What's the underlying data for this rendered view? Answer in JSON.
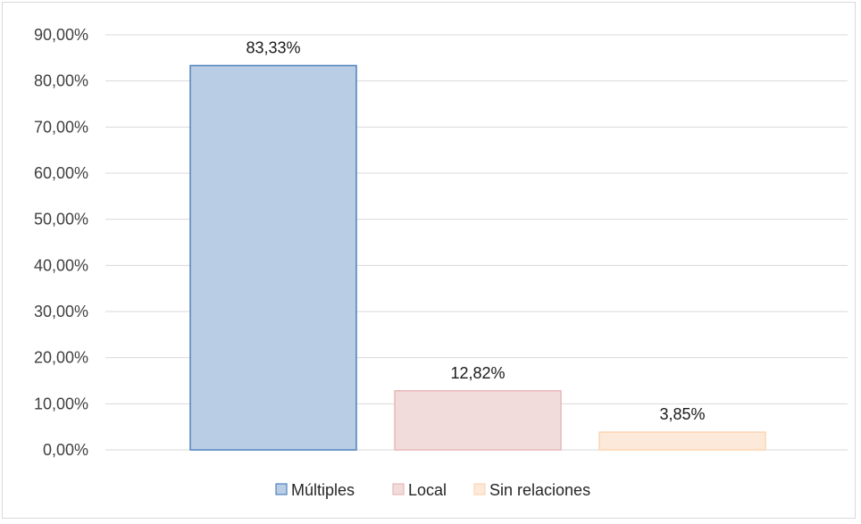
{
  "chart_data": {
    "type": "bar",
    "categories": [
      "Múltiples",
      "Local",
      "Sin relaciones"
    ],
    "values": [
      83.33,
      12.82,
      3.85
    ],
    "data_labels": [
      "83,33%",
      "12,82%",
      "3,85%"
    ],
    "ylim": [
      0,
      90
    ],
    "yticks": [
      0,
      10,
      20,
      30,
      40,
      50,
      60,
      70,
      80,
      90
    ],
    "ytick_labels": [
      "0,00%",
      "10,00%",
      "20,00%",
      "30,00%",
      "40,00%",
      "50,00%",
      "60,00%",
      "70,00%",
      "80,00%",
      "90,00%"
    ],
    "title": "",
    "xlabel": "",
    "ylabel": "",
    "grid": true,
    "legend_position": "bottom",
    "colors": {
      "fills": [
        "#b9cde5",
        "#f2dcdb",
        "#fde9d9"
      ],
      "strokes": [
        "#4f81bd",
        "#e6b9b8",
        "#fcd5b4"
      ],
      "grid": "#d9d9d9",
      "axis": "#d9d9d9"
    }
  }
}
